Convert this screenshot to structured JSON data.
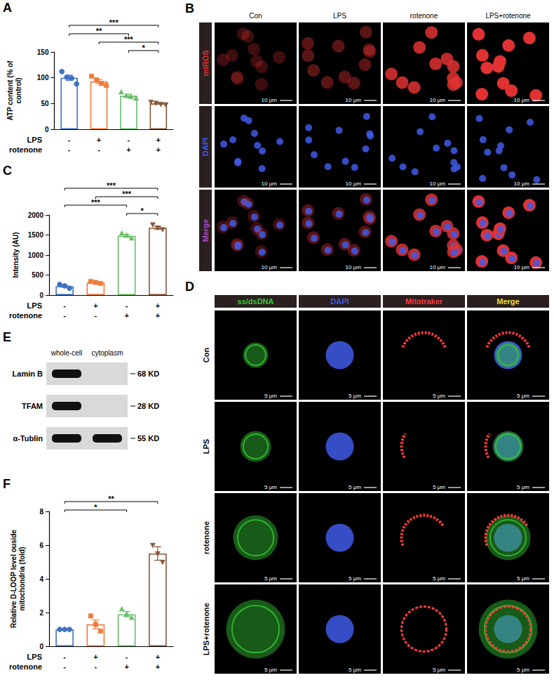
{
  "chart_data": [
    {
      "panel": "A",
      "type": "bar",
      "y_label": "ATP content (% of control)",
      "ylim": [
        0,
        150
      ],
      "yticks": [
        0,
        50,
        100,
        150
      ],
      "grid": false,
      "x_rows": [
        {
          "name": "LPS",
          "values": [
            "-",
            "+",
            "-",
            "+"
          ]
        },
        {
          "name": "rotenone",
          "values": [
            "-",
            "-",
            "+",
            "+"
          ]
        }
      ],
      "bars": [
        {
          "value": 100,
          "error": 5,
          "points": [
            112,
            101,
            99,
            88
          ],
          "color": "#3f72c4",
          "marker": "circle"
        },
        {
          "value": 93,
          "error": 4,
          "points": [
            103,
            96,
            89,
            85
          ],
          "color": "#f07a3a",
          "marker": "square"
        },
        {
          "value": 65,
          "error": 3,
          "points": [
            72,
            65,
            63,
            60
          ],
          "color": "#69bd69",
          "marker": "triangle"
        },
        {
          "value": 50,
          "error": 1.5,
          "points": [
            53,
            51,
            49,
            48
          ],
          "color": "#8b5a3c",
          "marker": "triangle-down"
        }
      ],
      "significance": [
        {
          "from": 0,
          "to": 3,
          "label": "***"
        },
        {
          "from": 0,
          "to": 2,
          "label": "**"
        },
        {
          "from": 1,
          "to": 3,
          "label": "***"
        },
        {
          "from": 2,
          "to": 3,
          "label": "*"
        }
      ]
    },
    {
      "panel": "C",
      "type": "bar",
      "y_label": "Intensity (AU)",
      "ylim": [
        0,
        2000
      ],
      "yticks": [
        0,
        500,
        1000,
        1500,
        2000
      ],
      "grid": false,
      "x_rows": [
        {
          "name": "LPS",
          "values": [
            "-",
            "+",
            "-",
            "+"
          ]
        },
        {
          "name": "rotenone",
          "values": [
            "-",
            "-",
            "+",
            "+"
          ]
        }
      ],
      "bars": [
        {
          "value": 220,
          "error": 28,
          "points": [
            265,
            230,
            170
          ],
          "color": "#3f72c4",
          "marker": "circle"
        },
        {
          "value": 310,
          "error": 13,
          "points": [
            340,
            315,
            290
          ],
          "color": "#f07a3a",
          "marker": "square"
        },
        {
          "value": 1480,
          "error": 35,
          "points": [
            1540,
            1490,
            1420
          ],
          "color": "#69bd69",
          "marker": "triangle"
        },
        {
          "value": 1680,
          "error": 35,
          "points": [
            1760,
            1680,
            1640
          ],
          "color": "#8b5a3c",
          "marker": "triangle-down"
        }
      ],
      "significance": [
        {
          "from": 0,
          "to": 3,
          "label": "***"
        },
        {
          "from": 1,
          "to": 3,
          "label": "***"
        },
        {
          "from": 0,
          "to": 2,
          "label": "***"
        },
        {
          "from": 2,
          "to": 3,
          "label": "*"
        }
      ]
    },
    {
      "panel": "F",
      "type": "bar",
      "y_label": "Relative D-LOOP level ouside mitochondria (fold)",
      "ylim": [
        0,
        8
      ],
      "yticks": [
        0,
        2,
        4,
        6,
        8
      ],
      "grid": false,
      "x_rows": [
        {
          "name": "LPS",
          "values": [
            "-",
            "+",
            "-",
            "+"
          ]
        },
        {
          "name": "rotenone",
          "values": [
            "-",
            "-",
            "+",
            "+"
          ]
        }
      ],
      "bars": [
        {
          "value": 1,
          "error": 0.03,
          "points": [
            1,
            1,
            1
          ],
          "color": "#3f72c4",
          "marker": "circle"
        },
        {
          "value": 1.3,
          "error": 0.26,
          "points": [
            1.8,
            1.3,
            0.9
          ],
          "color": "#f07a3a",
          "marker": "square"
        },
        {
          "value": 1.9,
          "error": 0.15,
          "points": [
            2.2,
            1.9,
            1.7
          ],
          "color": "#69bd69",
          "marker": "triangle"
        },
        {
          "value": 5.5,
          "error": 0.4,
          "points": [
            6.0,
            5.5,
            5.0
          ],
          "color": "#8b5a3c",
          "marker": "triangle-down"
        }
      ],
      "significance": [
        {
          "from": 0,
          "to": 3,
          "label": "**"
        },
        {
          "from": 0,
          "to": 2,
          "label": "*"
        }
      ]
    }
  ],
  "images": {
    "B": {
      "panel": "B",
      "columns": [
        "Con",
        "LPS",
        "rotenone",
        "LPS+rotenone"
      ],
      "rows": [
        {
          "label": "mtROS",
          "color": "#e03232"
        },
        {
          "label": "DAPI",
          "color": "#3f5ae8"
        },
        {
          "label": "Merge",
          "color": "#b04cc8"
        }
      ],
      "scale_bar": "10 μm"
    },
    "D": {
      "panel": "D",
      "columns": [
        {
          "label": "ss/dsDNA",
          "color": "#35c835"
        },
        {
          "label": "DAPI",
          "color": "#3f5ae8"
        },
        {
          "label": "Mitotraker",
          "color": "#ff3a3a"
        },
        {
          "label": "Merge",
          "color": "#e8e030"
        }
      ],
      "rows": [
        "Con",
        "LPS",
        "rotenone",
        "LPS+rotenone"
      ],
      "scale_bar": "5 μm"
    },
    "E": {
      "panel": "E",
      "lanes": [
        "whole-cell",
        "cytoplasm"
      ],
      "bands": [
        {
          "protein": "Lamin B",
          "size": "68 KD",
          "present": [
            true,
            false
          ]
        },
        {
          "protein": "TFAM",
          "size": "28 KD",
          "present": [
            true,
            false
          ]
        },
        {
          "protein": "α-Tublin",
          "size": "55 KD",
          "present": [
            true,
            true
          ]
        }
      ]
    }
  }
}
